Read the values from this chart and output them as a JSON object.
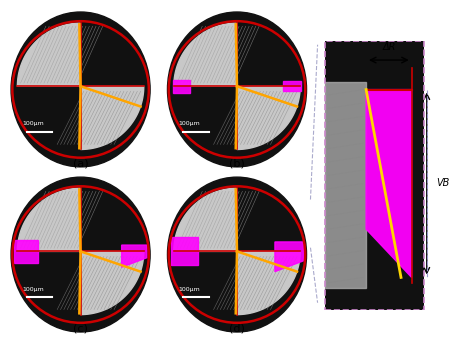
{
  "bg_color": "#f0f0f0",
  "fig_bg": "#ffffff",
  "circle_color": "#cc0000",
  "circle_lw": 2.0,
  "orange_color": "#FFA500",
  "magenta_color": "#FF00FF",
  "yellow_color": "#FFD700",
  "red_line_color": "#cc0000",
  "dark_bg": "#1a1a1a",
  "labels": [
    "(a)",
    "(b)",
    "(c)",
    "(d)"
  ],
  "scale_text": "100μm",
  "delta_r_label": "ΔR",
  "vb_label": "VB",
  "zoom_box_color": "#cc88cc",
  "zoom_line_color": "#aaaacc"
}
